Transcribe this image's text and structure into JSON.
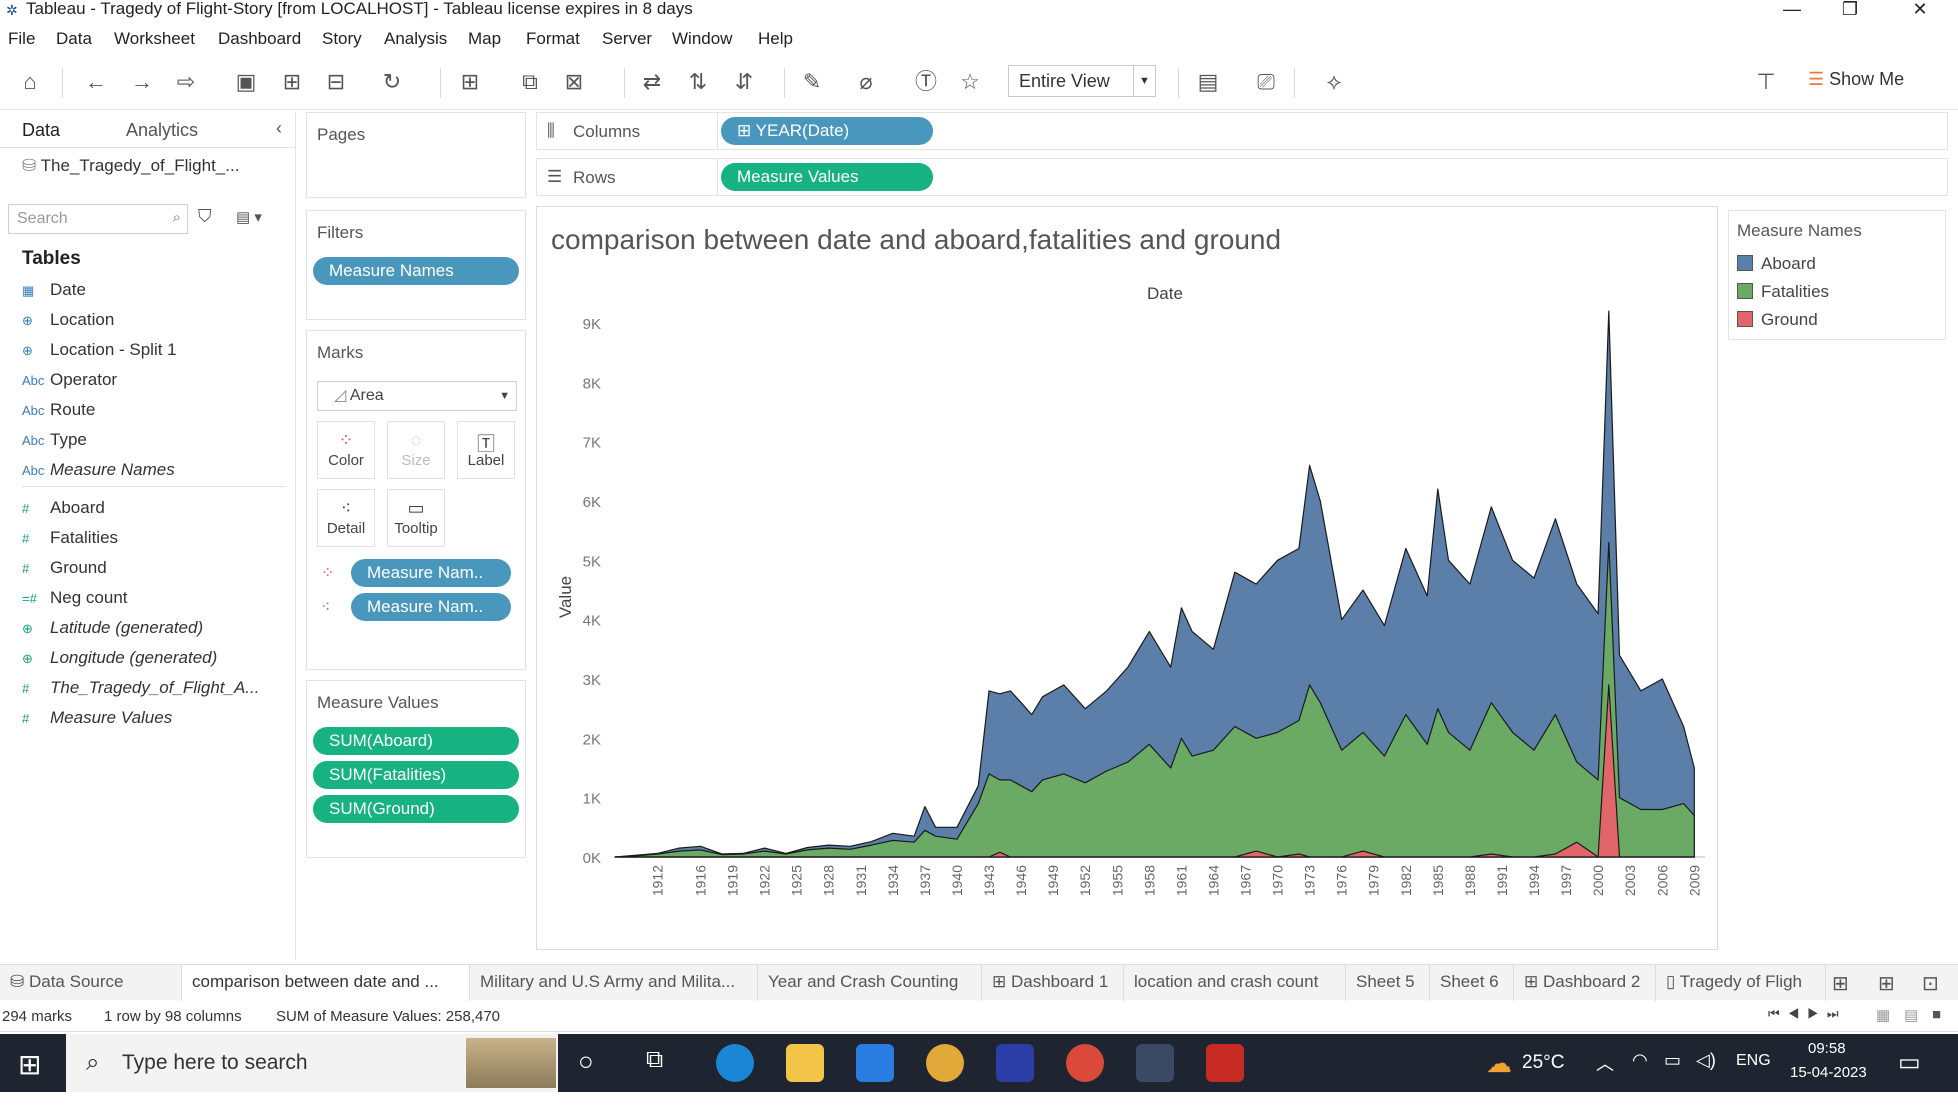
{
  "window": {
    "title": "Tableau - Tragedy of Flight-Story [from LOCALHOST] - Tableau license expires in 8 days",
    "minimize": "—",
    "restore": "❐",
    "close": "✕"
  },
  "menu": [
    "File",
    "Data",
    "Worksheet",
    "Dashboard",
    "Story",
    "Analysis",
    "Map",
    "Format",
    "Server",
    "Window",
    "Help"
  ],
  "toolbar": {
    "view_select": "Entire View",
    "show_me": "Show Me"
  },
  "data_pane": {
    "tab_data": "Data",
    "tab_analytics": "Analytics",
    "datasource": "The_Tragedy_of_Flight_...",
    "search_placeholder": "Search",
    "tables_header": "Tables",
    "dimensions": [
      {
        "icon": "calendar-icon",
        "glyph": "▦",
        "label": "Date"
      },
      {
        "icon": "globe-icon",
        "glyph": "⊕",
        "label": "Location"
      },
      {
        "icon": "globe-icon",
        "glyph": "⊕",
        "label": "Location - Split 1"
      },
      {
        "icon": "text-icon",
        "glyph": "Abc",
        "label": "Operator"
      },
      {
        "icon": "text-icon",
        "glyph": "Abc",
        "label": "Route"
      },
      {
        "icon": "text-icon",
        "glyph": "Abc",
        "label": "Type"
      },
      {
        "icon": "text-icon",
        "glyph": "Abc",
        "label": "Measure Names",
        "italic": true
      }
    ],
    "measures": [
      {
        "icon": "number-icon",
        "glyph": "#",
        "label": "Aboard"
      },
      {
        "icon": "number-icon",
        "glyph": "#",
        "label": "Fatalities"
      },
      {
        "icon": "number-icon",
        "glyph": "#",
        "label": "Ground"
      },
      {
        "icon": "number-icon",
        "glyph": "=#",
        "label": "Neg count"
      },
      {
        "icon": "globe-icon",
        "glyph": "⊕",
        "label": "Latitude (generated)",
        "italic": true
      },
      {
        "icon": "globe-icon",
        "glyph": "⊕",
        "label": "Longitude (generated)",
        "italic": true
      },
      {
        "icon": "number-icon",
        "glyph": "#",
        "label": "The_Tragedy_of_Flight_A...",
        "italic": true
      },
      {
        "icon": "number-icon",
        "glyph": "#",
        "label": "Measure Values",
        "italic": true
      }
    ]
  },
  "pages_card": {
    "title": "Pages"
  },
  "filters_card": {
    "title": "Filters",
    "pill": "Measure Names"
  },
  "marks_card": {
    "title": "Marks",
    "mark_type": "Area",
    "buttons": [
      {
        "icon": "color-icon",
        "label": "Color"
      },
      {
        "icon": "size-icon",
        "label": "Size"
      },
      {
        "icon": "label-icon",
        "label": "Label"
      },
      {
        "icon": "detail-icon",
        "label": "Detail"
      },
      {
        "icon": "tooltip-icon",
        "label": "Tooltip"
      }
    ],
    "pills": [
      "Measure Nam..",
      "Measure Nam.."
    ]
  },
  "measure_values_card": {
    "title": "Measure Values",
    "pills": [
      "SUM(Aboard)",
      "SUM(Fatalities)",
      "SUM(Ground)"
    ]
  },
  "shelves": {
    "columns_label": "Columns",
    "columns_pill": "YEAR(Date)",
    "rows_label": "Rows",
    "rows_pill": "Measure Values"
  },
  "legend": {
    "title": "Measure Names",
    "items": [
      {
        "label": "Aboard",
        "color": "#5b7fa9"
      },
      {
        "label": "Fatalities",
        "color": "#6aaa64"
      },
      {
        "label": "Ground",
        "color": "#e0666a"
      }
    ]
  },
  "chart_data": {
    "type": "area",
    "title": "comparison between date and aboard,fatalities and ground",
    "xlabel": "Date",
    "ylabel": "Value",
    "ylim": [
      0,
      9000
    ],
    "y_ticks": [
      "0K",
      "1K",
      "2K",
      "3K",
      "4K",
      "5K",
      "6K",
      "7K",
      "8K",
      "9K"
    ],
    "x_tick_labels": [
      "1912",
      "1916",
      "1919",
      "1922",
      "1925",
      "1928",
      "1931",
      "1934",
      "1937",
      "1940",
      "1943",
      "1946",
      "1949",
      "1952",
      "1955",
      "1958",
      "1961",
      "1964",
      "1967",
      "1970",
      "1973",
      "1976",
      "1979",
      "1982",
      "1985",
      "1988",
      "1991",
      "1994",
      "1997",
      "2000",
      "2003",
      "2006",
      "2009"
    ],
    "x": [
      1908,
      1910,
      1912,
      1914,
      1916,
      1918,
      1920,
      1922,
      1924,
      1926,
      1928,
      1930,
      1932,
      1934,
      1936,
      1937,
      1938,
      1940,
      1942,
      1943,
      1944,
      1945,
      1946,
      1947,
      1948,
      1950,
      1952,
      1954,
      1956,
      1958,
      1960,
      1961,
      1962,
      1964,
      1966,
      1968,
      1970,
      1972,
      1973,
      1974,
      1976,
      1978,
      1980,
      1982,
      1984,
      1985,
      1986,
      1988,
      1990,
      1992,
      1994,
      1996,
      1998,
      2000,
      2001,
      2002,
      2004,
      2006,
      2008,
      2009
    ],
    "series": [
      {
        "name": "Aboard",
        "color": "#5b7fa9",
        "values": [
          0,
          30,
          60,
          150,
          180,
          50,
          60,
          150,
          60,
          160,
          200,
          180,
          260,
          400,
          350,
          850,
          500,
          500,
          1200,
          2800,
          2750,
          2800,
          2600,
          2400,
          2700,
          2900,
          2500,
          2800,
          3200,
          3800,
          3200,
          4200,
          3800,
          3500,
          4800,
          4600,
          5000,
          5200,
          6600,
          6000,
          4000,
          4500,
          3900,
          5200,
          4400,
          6200,
          5000,
          4600,
          5900,
          5000,
          4700,
          5700,
          4600,
          4100,
          9200,
          3400,
          2800,
          3000,
          2200,
          1500
        ]
      },
      {
        "name": "Fatalities",
        "color": "#6aaa64",
        "values": [
          0,
          20,
          50,
          100,
          120,
          40,
          50,
          100,
          50,
          120,
          150,
          130,
          200,
          280,
          250,
          450,
          350,
          300,
          900,
          1400,
          1300,
          1300,
          1200,
          1100,
          1300,
          1400,
          1250,
          1450,
          1600,
          1900,
          1500,
          2000,
          1700,
          1800,
          2200,
          2000,
          2100,
          2300,
          2900,
          2600,
          1800,
          2100,
          1700,
          2400,
          1900,
          2500,
          2100,
          1800,
          2600,
          2100,
          1800,
          2400,
          1600,
          1300,
          5300,
          1000,
          800,
          800,
          900,
          700
        ]
      },
      {
        "name": "Ground",
        "color": "#e0666a",
        "values": [
          0,
          0,
          0,
          0,
          0,
          0,
          0,
          0,
          0,
          0,
          0,
          0,
          0,
          0,
          0,
          0,
          0,
          0,
          0,
          0,
          80,
          0,
          0,
          0,
          0,
          0,
          0,
          0,
          0,
          0,
          0,
          0,
          0,
          0,
          0,
          100,
          0,
          50,
          0,
          0,
          0,
          100,
          0,
          0,
          0,
          0,
          0,
          0,
          50,
          0,
          0,
          50,
          250,
          0,
          2900,
          0,
          0,
          0,
          0,
          0
        ]
      }
    ],
    "grid": false,
    "legend_position": "right"
  },
  "sheet_tabs": [
    {
      "label": "Data Source",
      "icon": "database-icon"
    },
    {
      "label": "comparison between date and ...",
      "active": true
    },
    {
      "label": "Military and U.S Army and Milita..."
    },
    {
      "label": "Year and Crash Counting"
    },
    {
      "label": "Dashboard 1",
      "icon": "dashboard-icon"
    },
    {
      "label": "location and crash count"
    },
    {
      "label": "Sheet 5"
    },
    {
      "label": "Sheet 6"
    },
    {
      "label": "Dashboard 2",
      "icon": "dashboard-icon"
    },
    {
      "label": "Tragedy of Fligh",
      "icon": "story-icon"
    }
  ],
  "status": {
    "marks": "294 marks",
    "rows_cols": "1 row by 98 columns",
    "sum": "SUM of Measure Values: 258,470"
  },
  "taskbar": {
    "search_placeholder": "Type here to search",
    "weather": "25°C",
    "lang": "ENG",
    "time": "09:58",
    "date": "15-04-2023"
  }
}
